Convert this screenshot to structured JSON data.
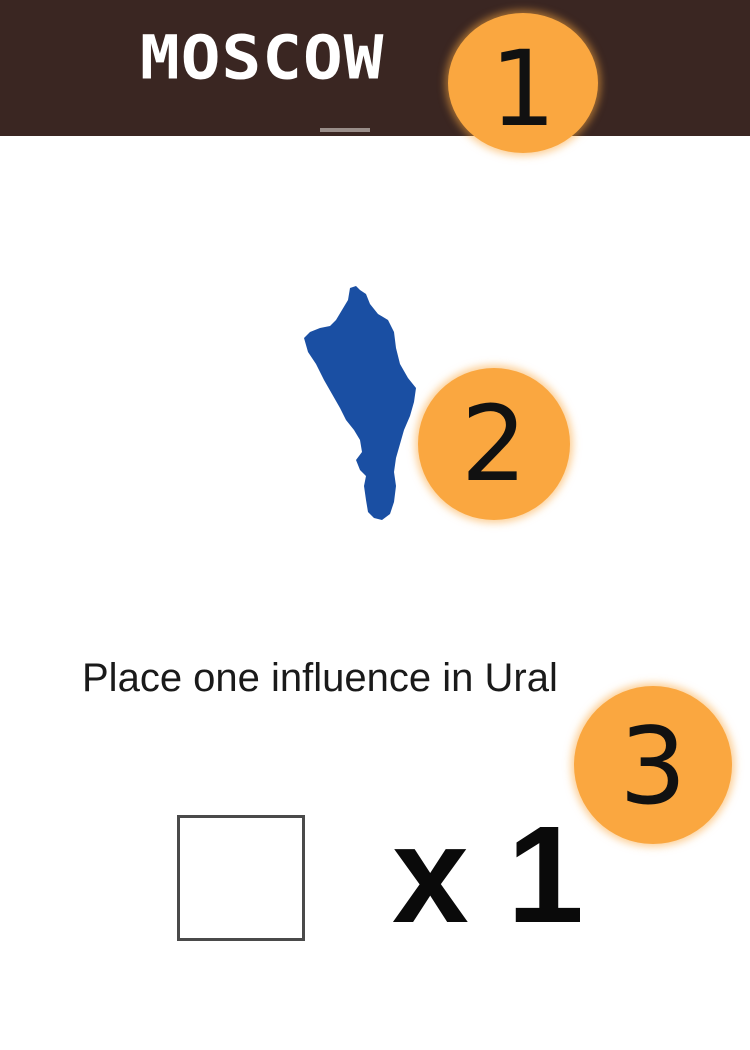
{
  "header": {
    "title": "MOSCOW"
  },
  "badges": {
    "one": "1",
    "two": "2",
    "three": "3"
  },
  "region": {
    "icon": "ural-region-map-icon",
    "color": "#1a4fa3"
  },
  "instruction": {
    "text": "Place one influence in Ural"
  },
  "token": {
    "count_label": "x 1"
  },
  "colors": {
    "header_bg": "#3a2622",
    "badge": "#faa740",
    "region": "#1a4fa3"
  }
}
